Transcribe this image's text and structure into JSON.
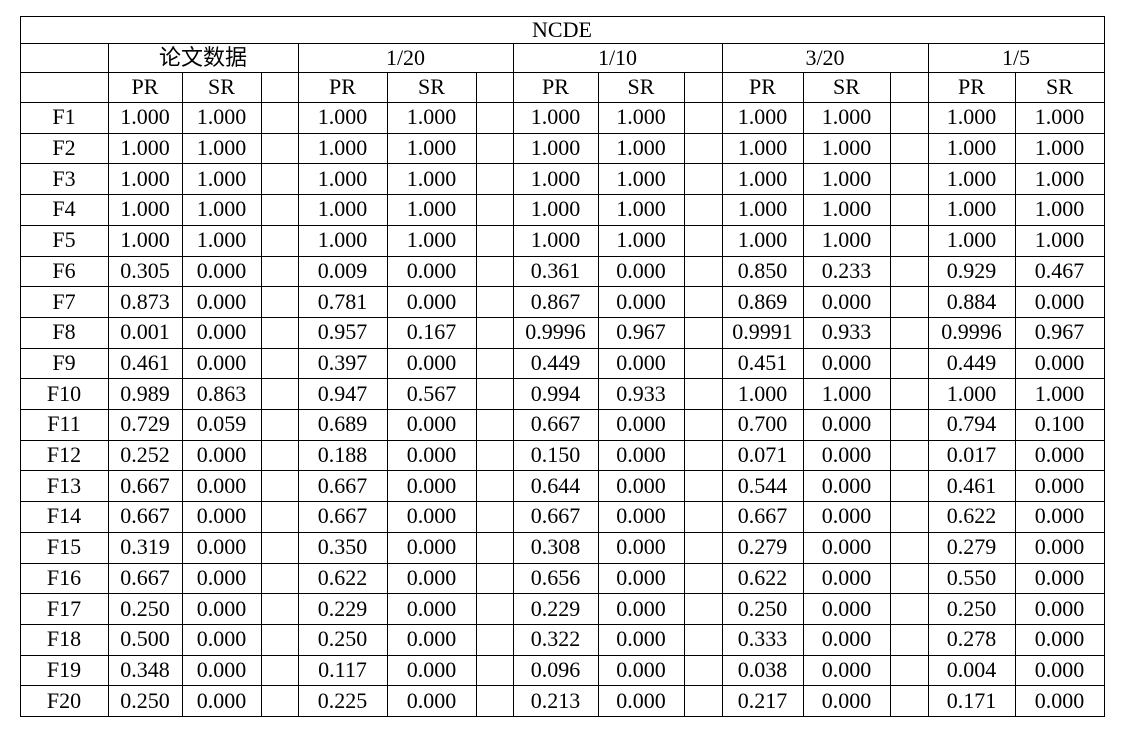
{
  "title": "NCDE",
  "groups": [
    "论文数据",
    "1/20",
    "1/10",
    "3/20",
    "1/5"
  ],
  "sub_headers": [
    "PR",
    "SR"
  ],
  "rows": [
    {
      "label": "F1",
      "cells": [
        "1.000",
        "1.000",
        "1.000",
        "1.000",
        "1.000",
        "1.000",
        "1.000",
        "1.000",
        "1.000",
        "1.000"
      ]
    },
    {
      "label": "F2",
      "cells": [
        "1.000",
        "1.000",
        "1.000",
        "1.000",
        "1.000",
        "1.000",
        "1.000",
        "1.000",
        "1.000",
        "1.000"
      ]
    },
    {
      "label": "F3",
      "cells": [
        "1.000",
        "1.000",
        "1.000",
        "1.000",
        "1.000",
        "1.000",
        "1.000",
        "1.000",
        "1.000",
        "1.000"
      ]
    },
    {
      "label": "F4",
      "cells": [
        "1.000",
        "1.000",
        "1.000",
        "1.000",
        "1.000",
        "1.000",
        "1.000",
        "1.000",
        "1.000",
        "1.000"
      ]
    },
    {
      "label": "F5",
      "cells": [
        "1.000",
        "1.000",
        "1.000",
        "1.000",
        "1.000",
        "1.000",
        "1.000",
        "1.000",
        "1.000",
        "1.000"
      ]
    },
    {
      "label": "F6",
      "cells": [
        "0.305",
        "0.000",
        "0.009",
        "0.000",
        "0.361",
        "0.000",
        "0.850",
        "0.233",
        "0.929",
        "0.467"
      ]
    },
    {
      "label": "F7",
      "cells": [
        "0.873",
        "0.000",
        "0.781",
        "0.000",
        "0.867",
        "0.000",
        "0.869",
        "0.000",
        "0.884",
        "0.000"
      ]
    },
    {
      "label": "F8",
      "cells": [
        "0.001",
        "0.000",
        "0.957",
        "0.167",
        "0.9996",
        "0.967",
        "0.9991",
        "0.933",
        "0.9996",
        "0.967"
      ]
    },
    {
      "label": "F9",
      "cells": [
        "0.461",
        "0.000",
        "0.397",
        "0.000",
        "0.449",
        "0.000",
        "0.451",
        "0.000",
        "0.449",
        "0.000"
      ]
    },
    {
      "label": "F10",
      "cells": [
        "0.989",
        "0.863",
        "0.947",
        "0.567",
        "0.994",
        "0.933",
        "1.000",
        "1.000",
        "1.000",
        "1.000"
      ]
    },
    {
      "label": "F11",
      "cells": [
        "0.729",
        "0.059",
        "0.689",
        "0.000",
        "0.667",
        "0.000",
        "0.700",
        "0.000",
        "0.794",
        "0.100"
      ]
    },
    {
      "label": "F12",
      "cells": [
        "0.252",
        "0.000",
        "0.188",
        "0.000",
        "0.150",
        "0.000",
        "0.071",
        "0.000",
        "0.017",
        "0.000"
      ]
    },
    {
      "label": "F13",
      "cells": [
        "0.667",
        "0.000",
        "0.667",
        "0.000",
        "0.644",
        "0.000",
        "0.544",
        "0.000",
        "0.461",
        "0.000"
      ]
    },
    {
      "label": "F14",
      "cells": [
        "0.667",
        "0.000",
        "0.667",
        "0.000",
        "0.667",
        "0.000",
        "0.667",
        "0.000",
        "0.622",
        "0.000"
      ]
    },
    {
      "label": "F15",
      "cells": [
        "0.319",
        "0.000",
        "0.350",
        "0.000",
        "0.308",
        "0.000",
        "0.279",
        "0.000",
        "0.279",
        "0.000"
      ]
    },
    {
      "label": "F16",
      "cells": [
        "0.667",
        "0.000",
        "0.622",
        "0.000",
        "0.656",
        "0.000",
        "0.622",
        "0.000",
        "0.550",
        "0.000"
      ]
    },
    {
      "label": "F17",
      "cells": [
        "0.250",
        "0.000",
        "0.229",
        "0.000",
        "0.229",
        "0.000",
        "0.250",
        "0.000",
        "0.250",
        "0.000"
      ]
    },
    {
      "label": "F18",
      "cells": [
        "0.500",
        "0.000",
        "0.250",
        "0.000",
        "0.322",
        "0.000",
        "0.333",
        "0.000",
        "0.278",
        "0.000"
      ]
    },
    {
      "label": "F19",
      "cells": [
        "0.348",
        "0.000",
        "0.117",
        "0.000",
        "0.096",
        "0.000",
        "0.038",
        "0.000",
        "0.004",
        "0.000"
      ]
    },
    {
      "label": "F20",
      "cells": [
        "0.250",
        "0.000",
        "0.225",
        "0.000",
        "0.213",
        "0.000",
        "0.217",
        "0.000",
        "0.171",
        "0.000"
      ]
    }
  ]
}
